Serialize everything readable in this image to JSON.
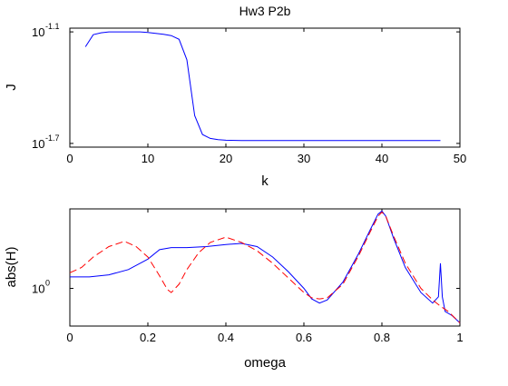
{
  "chart_data": [
    {
      "type": "line",
      "title": "Hw3 P2b",
      "xlabel": "k",
      "ylabel": "J",
      "xlim": [
        0,
        50
      ],
      "yscale": "log",
      "ylim_log10": [
        -1.72,
        -1.08
      ],
      "xticks": [
        0,
        10,
        20,
        30,
        40,
        50
      ],
      "yticks": [
        {
          "log10": -1.1,
          "base": "10",
          "exponent": "-1.1"
        },
        {
          "log10": -1.7,
          "base": "10",
          "exponent": "-1.7"
        }
      ],
      "grid": false,
      "series": [
        {
          "color": "#0000ff",
          "dash": "solid",
          "x": [
            2,
            3,
            4,
            5,
            6,
            7,
            8,
            9,
            10,
            11,
            12,
            13,
            14,
            15,
            16,
            17,
            18,
            19,
            20,
            22,
            25,
            30,
            35,
            40,
            45,
            47.5
          ],
          "log10": [
            -1.18,
            -1.115,
            -1.105,
            -1.1,
            -1.1,
            -1.1,
            -1.1,
            -1.1,
            -1.103,
            -1.108,
            -1.113,
            -1.12,
            -1.14,
            -1.25,
            -1.55,
            -1.652,
            -1.673,
            -1.68,
            -1.683,
            -1.685,
            -1.685,
            -1.685,
            -1.685,
            -1.685,
            -1.685,
            -1.685
          ]
        }
      ]
    },
    {
      "type": "line",
      "xlabel": "omega",
      "ylabel": "abs(H)",
      "xlim": [
        0,
        1
      ],
      "yscale": "log",
      "ylim_log10": [
        -0.18,
        0.38
      ],
      "xticks": [
        0,
        0.2,
        0.4,
        0.6,
        0.8,
        1
      ],
      "yticks": [
        {
          "log10": 0,
          "base": "10",
          "exponent": "0"
        }
      ],
      "grid": false,
      "series": [
        {
          "color": "#0000ff",
          "dash": "solid",
          "x": [
            0,
            0.05,
            0.1,
            0.15,
            0.2,
            0.23,
            0.26,
            0.3,
            0.35,
            0.4,
            0.44,
            0.48,
            0.52,
            0.56,
            0.6,
            0.62,
            0.64,
            0.66,
            0.7,
            0.74,
            0.77,
            0.79,
            0.8,
            0.81,
            0.83,
            0.86,
            0.9,
            0.93,
            0.945,
            0.95,
            0.955,
            0.962,
            0.98,
            1.0
          ],
          "log10": [
            0.055,
            0.055,
            0.065,
            0.09,
            0.14,
            0.185,
            0.195,
            0.195,
            0.2,
            0.21,
            0.215,
            0.2,
            0.15,
            0.08,
            0.0,
            -0.05,
            -0.07,
            -0.055,
            0.03,
            0.165,
            0.28,
            0.355,
            0.37,
            0.345,
            0.24,
            0.1,
            -0.02,
            -0.07,
            -0.04,
            0.12,
            -0.04,
            -0.11,
            -0.13,
            -0.165
          ]
        },
        {
          "color": "#ff0000",
          "dash": "dashed",
          "x": [
            0,
            0.03,
            0.06,
            0.1,
            0.14,
            0.17,
            0.2,
            0.23,
            0.25,
            0.26,
            0.28,
            0.3,
            0.33,
            0.36,
            0.4,
            0.44,
            0.48,
            0.52,
            0.56,
            0.6,
            0.62,
            0.64,
            0.66,
            0.7,
            0.74,
            0.77,
            0.79,
            0.8,
            0.81,
            0.83,
            0.86,
            0.9,
            0.93,
            0.95,
            0.97,
            1.0
          ],
          "log10": [
            0.075,
            0.1,
            0.15,
            0.2,
            0.225,
            0.2,
            0.15,
            0.06,
            -0.005,
            -0.02,
            0.02,
            0.09,
            0.17,
            0.22,
            0.245,
            0.22,
            0.18,
            0.12,
            0.05,
            -0.02,
            -0.045,
            -0.05,
            -0.045,
            0.02,
            0.155,
            0.27,
            0.345,
            0.365,
            0.345,
            0.25,
            0.12,
            0.0,
            -0.055,
            -0.085,
            -0.11,
            -0.165
          ]
        }
      ]
    }
  ]
}
